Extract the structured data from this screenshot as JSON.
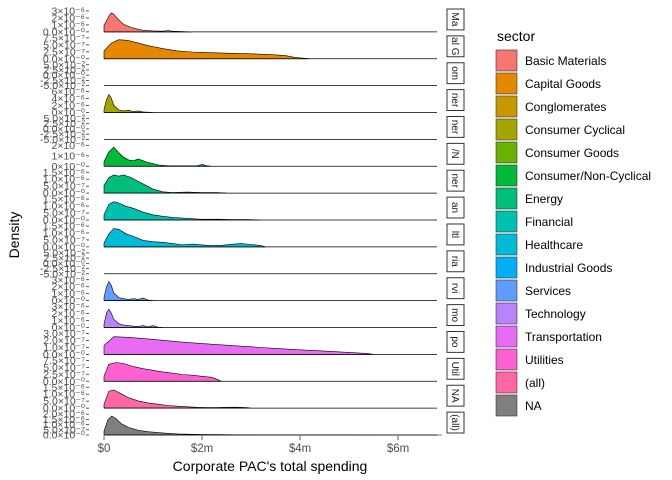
{
  "chart_data": {
    "type": "area",
    "subtype": "faceted density ridgeline",
    "title": "",
    "xlabel": "Corporate PAC's total spending",
    "ylabel": "Density",
    "x_ticks": [
      "$0",
      "$2m",
      "$4m",
      "$6m"
    ],
    "x_tick_values": [
      0,
      2000000,
      4000000,
      6000000
    ],
    "xlim": [
      -200000,
      7000000
    ],
    "legend": {
      "title": "sector",
      "position": "right"
    },
    "grid": false,
    "facets": [
      {
        "strip": "Ma",
        "sector": "Basic Materials",
        "color": "#F8766D",
        "ticks": [
          "0.0×10⁻⁰",
          "1×10⁻⁶",
          "2×10⁻⁶",
          "3×10⁻⁶"
        ],
        "ymax": 3.3e-06,
        "x": [
          0,
          100000,
          150000,
          200000,
          300000,
          400000,
          550000,
          700000,
          800000,
          1000000,
          1200000,
          1300000,
          1400000,
          1600000,
          1800000
        ],
        "y": [
          1e-06,
          2.5e-06,
          3e-06,
          2.8e-06,
          1.9e-06,
          1.2e-06,
          7e-07,
          4e-07,
          2.5e-07,
          1.5e-07,
          1e-07,
          2e-07,
          1e-07,
          5e-08,
          0
        ]
      },
      {
        "strip": "al G",
        "sector": "Capital Goods",
        "color": "#E58700",
        "ticks": [
          "0.0×10⁻⁰",
          "2.5×10⁻⁷",
          "5.0×10⁻⁷",
          "7.5×10⁻⁷"
        ],
        "ymax": 8e-07,
        "x": [
          0,
          150000,
          300000,
          500000,
          700000,
          900000,
          1200000,
          1500000,
          1800000,
          2200000,
          2600000,
          3000000,
          3400000,
          3700000,
          3900000,
          4200000
        ],
        "y": [
          3e-07,
          6e-07,
          7.3e-07,
          7e-07,
          6e-07,
          5e-07,
          3.9e-07,
          3e-07,
          2.6e-07,
          2.3e-07,
          2.1e-07,
          1.9e-07,
          1.6e-07,
          1.2e-07,
          5e-08,
          0
        ]
      },
      {
        "strip": "om",
        "sector": "Conglomerates",
        "color": "#C99800",
        "ticks": [
          "-5.0×10⁻²",
          "-2.5×10⁻²",
          "0.0×10⁻⁰",
          "2.5×10⁻²",
          "5.0×10⁻²"
        ],
        "ymax": 0.05,
        "x": [],
        "y": []
      },
      {
        "strip": "ner",
        "sector": "Consumer Cyclical",
        "color": "#A3A500",
        "ticks": [
          "0×10⁻⁰",
          "2×10⁻⁶",
          "4×10⁻⁶",
          "6×10⁻⁶"
        ],
        "ymax": 6.5e-06,
        "x": [
          0,
          50000,
          100000,
          150000,
          200000,
          300000,
          400000,
          500000,
          600000,
          700000,
          800000,
          900000,
          1000000
        ],
        "y": [
          1e-06,
          4e-06,
          5.6e-06,
          4.5e-06,
          2.2e-06,
          8e-07,
          5e-07,
          7e-07,
          3e-07,
          5e-07,
          2e-07,
          1e-07,
          0
        ]
      },
      {
        "strip": "ner",
        "sector": "Consumer Goods",
        "color": "#6BB100",
        "ticks": [
          "-5.0×10⁻²",
          "-2.5×10⁻²",
          "0.0×10⁻⁰",
          "2.5×10⁻²",
          "5.0×10⁻²"
        ],
        "ymax": 0.05,
        "x": [],
        "y": []
      },
      {
        "strip": "/N",
        "sector": "Consumer/Non-Cyclical",
        "color": "#00BA38",
        "ticks": [
          "0×10⁻⁰",
          "1×10⁻⁶",
          "2×10⁻⁶"
        ],
        "ymax": 2.3e-06,
        "x": [
          0,
          100000,
          200000,
          300000,
          400000,
          500000,
          600000,
          700000,
          800000,
          900000,
          1000000,
          1100000,
          1300000,
          1600000,
          1900000,
          2000000,
          2100000,
          2200000
        ],
        "y": [
          5e-07,
          1.6e-06,
          2.1e-06,
          1.5e-06,
          1e-06,
          7e-07,
          6e-07,
          8e-07,
          6e-07,
          4e-07,
          3e-07,
          1.5e-07,
          5e-08,
          5e-08,
          5e-08,
          2e-07,
          5e-08,
          0
        ]
      },
      {
        "strip": "ner",
        "sector": "Energy",
        "color": "#00BF7D",
        "ticks": [
          "0.0×10⁻⁰",
          "5.0×10⁻⁷",
          "1.0×10⁻⁶",
          "1.5×10⁻⁶"
        ],
        "ymax": 1.6e-06,
        "x": [
          0,
          100000,
          200000,
          300000,
          400000,
          550000,
          700000,
          850000,
          1000000,
          1200000,
          1400000,
          1700000,
          2000000,
          2300000,
          2500000
        ],
        "y": [
          6e-07,
          1.2e-06,
          1.4e-06,
          1.3e-06,
          1.4e-06,
          1.2e-06,
          9e-07,
          6e-07,
          3e-07,
          1e-07,
          5e-08,
          8e-08,
          5e-08,
          5e-08,
          0
        ]
      },
      {
        "strip": "an",
        "sector": "Financial",
        "color": "#00C0AF",
        "ticks": [
          "0.0×10⁻⁰",
          "5.0×10⁻⁷",
          "1.0×10⁻⁶",
          "1.5×10⁻⁶"
        ],
        "ymax": 1.6e-06,
        "x": [
          0,
          100000,
          200000,
          300000,
          450000,
          600000,
          800000,
          1000000,
          1200000,
          1400000,
          1600000,
          1800000,
          2000000,
          2300000,
          2600000,
          2900000,
          3200000
        ],
        "y": [
          4e-07,
          1.2e-06,
          1.4e-06,
          1.3e-06,
          1.05e-06,
          9e-07,
          6e-07,
          4e-07,
          2.8e-07,
          2e-07,
          1.5e-07,
          1e-07,
          5e-08,
          6e-08,
          4e-08,
          3e-08,
          0
        ]
      },
      {
        "strip": "ltl",
        "sector": "Healthcare",
        "color": "#00BCD8",
        "ticks": [
          "0.0×10⁻⁰",
          "5.0×10⁻⁷",
          "1.0×10⁻⁶",
          "1.5×10⁻⁶"
        ],
        "ymax": 1.6e-06,
        "x": [
          0,
          100000,
          200000,
          300000,
          450000,
          600000,
          800000,
          1000000,
          1200000,
          1400000,
          1600000,
          1800000,
          2000000,
          2200000,
          2400000,
          2600000,
          2800000,
          3000000,
          3200000,
          3300000
        ],
        "y": [
          3e-07,
          1e-06,
          1.4e-06,
          1.35e-06,
          1e-06,
          8e-07,
          5e-07,
          4e-07,
          3.5e-07,
          2.5e-07,
          1.5e-07,
          2.2e-07,
          1.5e-07,
          1e-07,
          1.2e-07,
          2e-07,
          2.5e-07,
          1.8e-07,
          1e-07,
          0
        ]
      },
      {
        "strip": "ria",
        "sector": "Industrial Goods",
        "color": "#00B0F6",
        "ticks": [
          "-5.0×10⁻²",
          "-2.5×10⁻²",
          "0.0×10⁻⁰",
          "2.5×10⁻²",
          "5.0×10⁻²"
        ],
        "ymax": 0.05,
        "x": [],
        "y": []
      },
      {
        "strip": "rvi",
        "sector": "Services",
        "color": "#619CFF",
        "ticks": [
          "0×10⁻⁰",
          "1×10⁻⁶",
          "2×10⁻⁶",
          "3×10⁻⁶"
        ],
        "ymax": 3.3e-06,
        "x": [
          0,
          50000,
          100000,
          150000,
          200000,
          300000,
          400000,
          500000,
          600000,
          700000,
          800000,
          900000,
          1000000
        ],
        "y": [
          5e-07,
          2.2e-06,
          3e-06,
          2.4e-06,
          1.2e-06,
          5e-07,
          3e-07,
          2e-07,
          3e-07,
          2e-07,
          4e-07,
          1e-07,
          0
        ]
      },
      {
        "strip": "mo",
        "sector": "Technology",
        "color": "#B983FF",
        "ticks": [
          "0×10⁻⁰",
          "1×10⁻⁶",
          "2×10⁻⁶",
          "3×10⁻⁶"
        ],
        "ymax": 3.3e-06,
        "x": [
          0,
          50000,
          100000,
          150000,
          200000,
          300000,
          400000,
          500000,
          600000,
          700000,
          800000,
          900000,
          1000000,
          1100000,
          1200000
        ],
        "y": [
          5e-07,
          2.3e-06,
          2.9e-06,
          2.3e-06,
          1.3e-06,
          6e-07,
          4e-07,
          3e-07,
          2e-07,
          1.5e-07,
          3e-07,
          1e-07,
          3e-07,
          5e-08,
          0
        ]
      },
      {
        "strip": "po",
        "sector": "Transportation",
        "color": "#E76BF3",
        "ticks": [
          "0.0×10⁻⁰",
          "1.0×10⁻⁷",
          "2.0×10⁻⁷",
          "3.0×10⁻⁷"
        ],
        "ymax": 3.3e-07,
        "x": [
          0,
          200000,
          500000,
          800000,
          1100000,
          1500000,
          2000000,
          2500000,
          3000000,
          3500000,
          4000000,
          4500000,
          5000000,
          5400000,
          5500000
        ],
        "y": [
          1.4e-07,
          2.8e-07,
          2.7e-07,
          2.5e-07,
          2.3e-07,
          2e-07,
          1.7e-07,
          1.45e-07,
          1.2e-07,
          9.5e-08,
          7.2e-08,
          5.2e-08,
          3.2e-08,
          1.2e-08,
          0
        ]
      },
      {
        "strip": "Util",
        "sector": "Utilities",
        "color": "#FD61D1",
        "ticks": [
          "0.0×10⁻⁰",
          "2.5×10⁻⁷",
          "5.0×10⁻⁷",
          "7.5×10⁻⁷"
        ],
        "ymax": 8e-07,
        "x": [
          0,
          100000,
          250000,
          400000,
          600000,
          800000,
          1000000,
          1200000,
          1400000,
          1600000,
          1800000,
          2000000,
          2200000,
          2300000,
          2400000
        ],
        "y": [
          2e-07,
          6.5e-07,
          7.2e-07,
          6.8e-07,
          5.6e-07,
          4.8e-07,
          4.2e-07,
          3.6e-07,
          3.1e-07,
          2.6e-07,
          2.3e-07,
          1.9e-07,
          1.5e-07,
          8e-08,
          0
        ]
      },
      {
        "strip": "NA",
        "sector": "(all)",
        "color": "#FF67A4",
        "ticks": [
          "0.0×10⁻⁰",
          "5.0×10⁻⁷",
          "1.0×10⁻⁶",
          "1.5×10⁻⁶"
        ],
        "ymax": 1.6e-06,
        "x": [
          0,
          100000,
          200000,
          350000,
          500000,
          700000,
          900000,
          1100000,
          1300000,
          1500000,
          1700000,
          1900000,
          2100000,
          2300000,
          2500000,
          2700000,
          2900000,
          3000000
        ],
        "y": [
          3e-07,
          1.3e-06,
          1.4e-06,
          1.1e-06,
          8e-07,
          5.5e-07,
          4e-07,
          3e-07,
          2e-07,
          1.5e-07,
          1e-07,
          6e-08,
          5e-08,
          4e-08,
          6e-08,
          7e-08,
          5e-08,
          0
        ]
      },
      {
        "strip": "(all)",
        "sector": "NA",
        "color": "#7F7F7F",
        "ticks": [
          "0.0×10⁻⁰",
          "5.0×10⁻⁷",
          "1.0×10⁻⁶",
          "1.5×10⁻⁶",
          "2.0×10⁻⁶"
        ],
        "ymax": 2.2e-06,
        "x": [
          0,
          80000,
          160000,
          250000,
          350000,
          500000,
          700000,
          900000,
          1100000,
          1300000,
          1500000,
          1700000,
          1900000,
          2100000,
          2300000,
          2500000,
          2700000,
          2900000,
          3200000,
          3600000,
          4000000,
          4500000,
          5000000,
          5500000,
          6000000,
          6500000,
          6900000
        ],
        "y": [
          4e-07,
          1.6e-06,
          2e-06,
          1.7e-06,
          1.2e-06,
          8e-07,
          5e-07,
          3.5e-07,
          2.5e-07,
          1.8e-07,
          1.2e-07,
          8e-08,
          6e-08,
          5e-08,
          4e-08,
          3e-08,
          2.5e-08,
          2e-08,
          1.5e-08,
          1.2e-08,
          1e-08,
          8e-09,
          6e-09,
          4e-09,
          3e-09,
          2e-09,
          0
        ]
      }
    ]
  }
}
